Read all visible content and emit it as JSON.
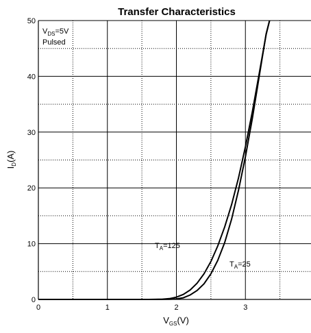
{
  "chart_data": {
    "type": "line",
    "title": "Transfer Characteristics",
    "xlabel": {
      "main": "V",
      "sub": "GS",
      "suffix": "(V)"
    },
    "ylabel": {
      "main": "I",
      "sub": "D",
      "suffix": "(A)"
    },
    "xlim": [
      0,
      4
    ],
    "ylim": [
      0,
      50
    ],
    "x_ticks": [
      "0",
      "1",
      "2",
      "3"
    ],
    "y_ticks": [
      "0",
      "10",
      "20",
      "30",
      "40",
      "50"
    ],
    "grid": true,
    "conditions": {
      "line1": {
        "main": "V",
        "sub": "DS",
        "suffix": "=5V"
      },
      "line2": "Pulsed"
    },
    "series": [
      {
        "name": {
          "main": "T",
          "sub": "A",
          "suffix": "=125"
        },
        "x": [
          1.6,
          1.8,
          1.9,
          2.0,
          2.1,
          2.2,
          2.3,
          2.4,
          2.5,
          2.6,
          2.7,
          2.8,
          2.9,
          3.0,
          3.1,
          3.2,
          3.3,
          3.35
        ],
        "y": [
          0,
          0.05,
          0.15,
          0.4,
          0.9,
          1.7,
          2.9,
          4.6,
          6.8,
          9.6,
          13.0,
          17.0,
          21.8,
          27.4,
          33.6,
          40.5,
          47.5,
          50
        ]
      },
      {
        "name": {
          "main": "T",
          "sub": "A",
          "suffix": "=25"
        },
        "x": [
          1.7,
          1.9,
          2.0,
          2.1,
          2.2,
          2.3,
          2.4,
          2.5,
          2.6,
          2.7,
          2.8,
          2.9,
          3.0,
          3.1,
          3.2,
          3.3,
          3.35
        ],
        "y": [
          0,
          0.02,
          0.1,
          0.3,
          0.8,
          1.6,
          2.8,
          4.6,
          7.0,
          10.2,
          14.4,
          19.6,
          25.6,
          32.4,
          40.0,
          47.6,
          50
        ]
      }
    ]
  }
}
